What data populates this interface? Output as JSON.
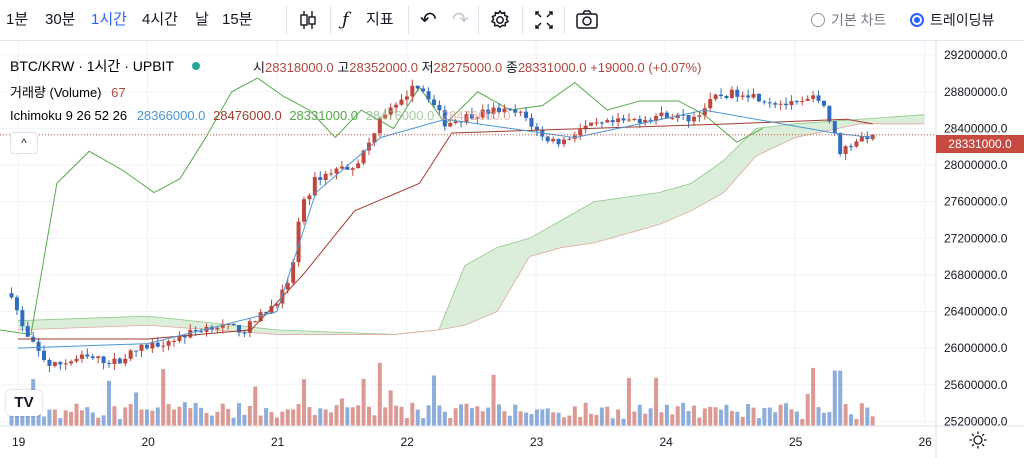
{
  "toolbar": {
    "intervals": [
      "1분",
      "30분",
      "1시간",
      "4시간",
      "날",
      "15분"
    ],
    "active_interval": "1시간",
    "indicator_label": "지표",
    "chart_modes": [
      "기본 차트",
      "트레이딩뷰"
    ],
    "selected_mode": "트레이딩뷰",
    "icons": [
      "candle-style-icon",
      "fx-icon",
      "undo-icon",
      "redo-icon",
      "settings-icon",
      "fullscreen-icon",
      "camera-icon"
    ]
  },
  "legend": {
    "symbol": "BTC/KRW",
    "interval": "1시간",
    "exchange": "UPBIT",
    "open_label": "시",
    "open": "28318000.0",
    "high_label": "고",
    "high": "28352000.0",
    "low_label": "저",
    "low": "28275000.0",
    "close_label": "종",
    "close": "28331000.0",
    "change": "+19000.0 (+0.07%)",
    "volume_label": "거래량 (Volume)",
    "volume_value": "67",
    "ichimoku_label": "Ichimoku 9 26 52 26",
    "ichimoku_values": [
      "28366000.0",
      "28476000.0",
      "28331000.0",
      "28476000.0",
      "28476000.0"
    ],
    "collapse": "^"
  },
  "logo_text": "TV",
  "colors": {
    "up": "#c0473c",
    "down": "#2f6cbf",
    "conversion": "#4a97d4",
    "base": "#a23b2f",
    "lagging": "#55a94a",
    "cloud_bull": "#cfe8cc",
    "cloud_bear": "#f6d5d1"
  },
  "chart_data": {
    "type": "candlestick",
    "title": "BTC/KRW · 1시간 · UPBIT",
    "x_ticks": [
      "19",
      "20",
      "21",
      "22",
      "23",
      "24",
      "25",
      "26"
    ],
    "y_ticks": [
      "29200000.0",
      "28800000.0",
      "28400000.0",
      "28000000.0",
      "27600000.0",
      "27200000.0",
      "26800000.0",
      "26400000.0",
      "26000000.0",
      "25600000.0",
      "25200000.0"
    ],
    "ylim": [
      25150000,
      29300000
    ],
    "last_price": "28331000.0",
    "price_path": [
      [
        18.95,
        26600000
      ],
      [
        19.05,
        26150000
      ],
      [
        19.25,
        25800000
      ],
      [
        19.5,
        25900000
      ],
      [
        19.75,
        25850000
      ],
      [
        19.95,
        26000000
      ],
      [
        20.2,
        26100000
      ],
      [
        20.5,
        26250000
      ],
      [
        20.75,
        26200000
      ],
      [
        20.95,
        26450000
      ],
      [
        21.1,
        26700000
      ],
      [
        21.18,
        27500000
      ],
      [
        21.3,
        27850000
      ],
      [
        21.45,
        27950000
      ],
      [
        21.6,
        28000000
      ],
      [
        21.7,
        28200000
      ],
      [
        21.8,
        28550000
      ],
      [
        21.95,
        28650000
      ],
      [
        22.05,
        28900000
      ],
      [
        22.15,
        28800000
      ],
      [
        22.3,
        28450000
      ],
      [
        22.5,
        28550000
      ],
      [
        22.7,
        28600000
      ],
      [
        22.9,
        28550000
      ],
      [
        23.05,
        28300000
      ],
      [
        23.2,
        28250000
      ],
      [
        23.35,
        28400000
      ],
      [
        23.55,
        28450000
      ],
      [
        23.8,
        28500000
      ],
      [
        24.0,
        28550000
      ],
      [
        24.2,
        28500000
      ],
      [
        24.4,
        28750000
      ],
      [
        24.6,
        28800000
      ],
      [
        24.8,
        28700000
      ],
      [
        25.0,
        28650000
      ],
      [
        25.2,
        28750000
      ],
      [
        25.35,
        28150000
      ],
      [
        25.5,
        28300000
      ],
      [
        25.6,
        28331000
      ]
    ],
    "volume_ylim": [
      0,
      1000
    ],
    "kijun_path": [
      [
        19.0,
        26100000
      ],
      [
        20.0,
        26100000
      ],
      [
        20.8,
        26200000
      ],
      [
        21.2,
        26800000
      ],
      [
        21.6,
        27500000
      ],
      [
        22.1,
        27800000
      ],
      [
        22.35,
        28350000
      ],
      [
        24.5,
        28450000
      ],
      [
        25.4,
        28500000
      ],
      [
        25.6,
        28450000
      ]
    ],
    "tenkan_path": [
      [
        19.0,
        26000000
      ],
      [
        20.0,
        26050000
      ],
      [
        21.0,
        26400000
      ],
      [
        21.3,
        27700000
      ],
      [
        21.8,
        28300000
      ],
      [
        22.3,
        28500000
      ],
      [
        23.3,
        28300000
      ],
      [
        24.3,
        28600000
      ],
      [
        25.3,
        28350000
      ],
      [
        25.6,
        28300000
      ]
    ],
    "lagging_path": [
      [
        18.6,
        26150000
      ],
      [
        18.85,
        26200000
      ],
      [
        19.1,
        26150000
      ],
      [
        19.3,
        27800000
      ],
      [
        19.55,
        28150000
      ],
      [
        19.8,
        27950000
      ],
      [
        20.05,
        27700000
      ],
      [
        20.25,
        27850000
      ],
      [
        20.45,
        28300000
      ],
      [
        20.65,
        28800000
      ],
      [
        20.85,
        28950000
      ],
      [
        21.05,
        28750000
      ],
      [
        21.25,
        28600000
      ],
      [
        21.45,
        28300000
      ],
      [
        21.65,
        28600000
      ],
      [
        21.9,
        28400000
      ],
      [
        22.1,
        28850000
      ],
      [
        22.3,
        28450000
      ],
      [
        22.55,
        28800000
      ],
      [
        22.8,
        28600000
      ],
      [
        23.05,
        28650000
      ],
      [
        23.3,
        28900000
      ],
      [
        23.55,
        28600000
      ],
      [
        23.8,
        28700000
      ],
      [
        24.1,
        28700000
      ],
      [
        24.3,
        28550000
      ],
      [
        24.55,
        28250000
      ],
      [
        24.75,
        28400000
      ]
    ],
    "span_a_path": [
      [
        19.0,
        26300000
      ],
      [
        20.0,
        26350000
      ],
      [
        21.0,
        26200000
      ],
      [
        21.9,
        26150000
      ],
      [
        22.25,
        26200000
      ],
      [
        22.45,
        26900000
      ],
      [
        22.7,
        27100000
      ],
      [
        22.95,
        27200000
      ],
      [
        23.2,
        27400000
      ],
      [
        23.45,
        27600000
      ],
      [
        23.7,
        27650000
      ],
      [
        23.95,
        27700000
      ],
      [
        24.2,
        27800000
      ],
      [
        24.45,
        28050000
      ],
      [
        24.7,
        28400000
      ],
      [
        25.0,
        28450000
      ],
      [
        25.5,
        28500000
      ],
      [
        26.0,
        28550000
      ]
    ],
    "span_b_path": [
      [
        19.0,
        26200000
      ],
      [
        20.0,
        26250000
      ],
      [
        21.0,
        26150000
      ],
      [
        21.9,
        26150000
      ],
      [
        22.25,
        26200000
      ],
      [
        22.45,
        26250000
      ],
      [
        22.7,
        26400000
      ],
      [
        22.95,
        27000000
      ],
      [
        23.2,
        27100000
      ],
      [
        23.45,
        27150000
      ],
      [
        23.7,
        27250000
      ],
      [
        23.95,
        27350000
      ],
      [
        24.2,
        27500000
      ],
      [
        24.45,
        27700000
      ],
      [
        24.7,
        28100000
      ],
      [
        25.0,
        28300000
      ],
      [
        25.5,
        28450000
      ],
      [
        26.0,
        28450000
      ]
    ]
  }
}
